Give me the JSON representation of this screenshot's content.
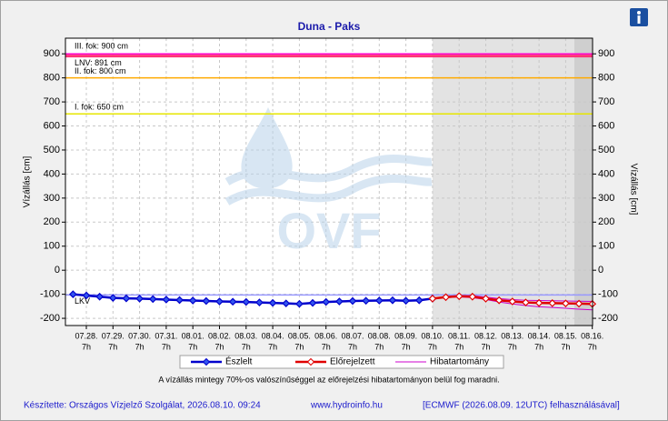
{
  "chart_data": {
    "type": "line",
    "title": "Duna - Paks",
    "y_label": "Vízállás [cm]",
    "y2_label": "Vízállás [cm]",
    "watermark": "OVF",
    "categories": [
      null,
      "07.28.",
      null,
      "07.29.",
      null,
      "07.30.",
      null,
      "07.31.",
      null,
      "08.01.",
      null,
      "08.02.",
      null,
      "08.03.",
      null,
      "08.04.",
      null,
      "08.05.",
      null,
      "08.06.",
      null,
      "08.07.",
      null,
      "08.08.",
      null,
      "08.09.",
      null,
      "08.10.",
      null,
      "08.11.",
      null,
      "08.12.",
      null,
      "08.13.",
      null,
      "08.14.",
      null,
      "08.15.",
      null,
      "08.16."
    ],
    "category_hour": "7h",
    "series": [
      {
        "name": "Észlelt",
        "color": "#0000cc",
        "values": [
          -100,
          -105,
          -110,
          -115,
          -117,
          -118,
          -120,
          -122,
          -124,
          -126,
          -128,
          -130,
          -131,
          -132,
          -134,
          -136,
          -138,
          -140,
          -136,
          -132,
          -130,
          -128,
          -127,
          -126,
          -125,
          -127,
          -125,
          -118,
          null,
          null,
          null,
          null,
          null,
          null,
          null,
          null,
          null,
          null,
          null,
          null
        ]
      },
      {
        "name": "Előrejelzett",
        "color": "#e00000",
        "values": [
          null,
          null,
          null,
          null,
          null,
          null,
          null,
          null,
          null,
          null,
          null,
          null,
          null,
          null,
          null,
          null,
          null,
          null,
          null,
          null,
          null,
          null,
          null,
          null,
          null,
          null,
          null,
          -118,
          -112,
          -108,
          -110,
          -118,
          -125,
          -130,
          -134,
          -136,
          -137,
          -138,
          -139,
          -140
        ]
      },
      {
        "name": "Hibatartomány",
        "color": "#cc00cc",
        "upper": [
          null,
          null,
          null,
          null,
          null,
          null,
          null,
          null,
          null,
          null,
          null,
          null,
          null,
          null,
          null,
          null,
          null,
          null,
          null,
          null,
          null,
          null,
          null,
          null,
          null,
          null,
          null,
          -118,
          -110,
          -105,
          -106,
          -112,
          -118,
          -122,
          -125,
          -126,
          -127,
          -128,
          -129,
          -130
        ],
        "lower": [
          null,
          null,
          null,
          null,
          null,
          null,
          null,
          null,
          null,
          null,
          null,
          null,
          null,
          null,
          null,
          null,
          null,
          null,
          null,
          null,
          null,
          null,
          null,
          null,
          null,
          null,
          null,
          -118,
          -114,
          -111,
          -114,
          -122,
          -132,
          -140,
          -147,
          -152,
          -155,
          -158,
          -162,
          -165
        ]
      }
    ],
    "thresholds": [
      {
        "label": "III. fok: 900 cm",
        "value": 900,
        "color": "#ff00cc"
      },
      {
        "label": "LNV: 891 cm",
        "value": 891,
        "color": "#ff3377"
      },
      {
        "label": "II. fok: 800 cm",
        "value": 800,
        "color": "#ffaa00"
      },
      {
        "label": "I. fok: 650 cm",
        "value": 650,
        "color": "#e6e600"
      },
      {
        "label": "LKV",
        "value": -103,
        "color": "#9999ff"
      }
    ],
    "ylim": [
      -230,
      965
    ],
    "yticks": [
      -200,
      -100,
      0,
      100,
      200,
      300,
      400,
      500,
      600,
      700,
      800,
      900
    ],
    "y2lim": [
      -230,
      965
    ],
    "y2ticks": [
      -200,
      -100,
      0,
      100,
      200,
      300,
      400,
      500,
      600,
      700,
      800,
      900
    ],
    "grid": true,
    "note": "A vízállás mintegy 70%-os valószínűséggel az előrejelzési hibatartományon belül fog maradni.",
    "footer": [
      "Készítette: Országos Vízjelző Szolgálat, 2026.08.10. 09:24",
      "www.hydroinfo.hu",
      "[ECMWF (2026.08.09. 12UTC) felhasználásával]"
    ]
  }
}
